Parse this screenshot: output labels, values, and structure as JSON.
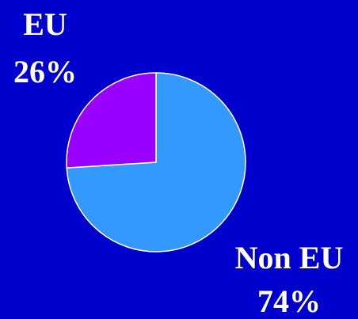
{
  "chart_data": {
    "type": "pie",
    "categories": [
      "Non EU",
      "EU"
    ],
    "values": [
      74,
      26
    ],
    "value_labels": [
      "74%",
      "26%"
    ],
    "colors": [
      "#3399ff",
      "#9900ff"
    ],
    "start_angle": 90,
    "direction": "clockwise"
  }
}
